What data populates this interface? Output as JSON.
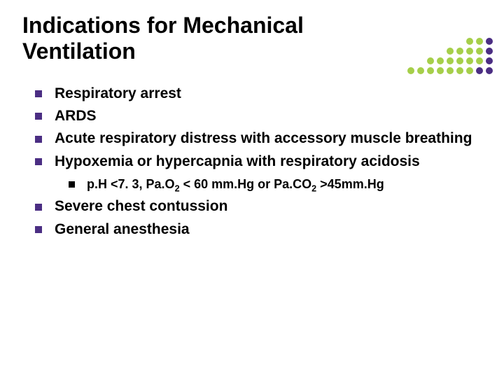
{
  "styling": {
    "bullet_color": "#4b2e83",
    "subbullet_color": "#000000",
    "title_fontsize": 32,
    "body_fontsize": 21,
    "sub_fontsize": 18,
    "title_color": "#000000",
    "body_color": "#000000",
    "background": "#ffffff"
  },
  "title": "Indications for Mechanical Ventilation",
  "bullets": [
    {
      "text": "Respiratory arrest"
    },
    {
      "text": "ARDS"
    },
    {
      "text": "Acute respiratory distress with accessory muscle breathing"
    },
    {
      "text": "Hypoxemia or hypercapnia with respiratory acidosis",
      "sub": [
        {
          "html": "p.H <7. 3, Pa.O<sub>2</sub> < 60 mm.Hg or Pa.CO<sub>2</sub> >45mm.Hg"
        }
      ]
    },
    {
      "text": "Severe chest contussion"
    },
    {
      "text": "General anesthesia"
    }
  ],
  "decoration": {
    "rows": [
      [
        "#a6cf4a",
        "#a6cf4a",
        "#4b2e83"
      ],
      [
        "#a6cf4a",
        "#a6cf4a",
        "#a6cf4a",
        "#a6cf4a",
        "#4b2e83"
      ],
      [
        "#a6cf4a",
        "#a6cf4a",
        "#a6cf4a",
        "#a6cf4a",
        "#a6cf4a",
        "#a6cf4a",
        "#4b2e83"
      ],
      [
        "#a6cf4a",
        "#a6cf4a",
        "#a6cf4a",
        "#a6cf4a",
        "#a6cf4a",
        "#a6cf4a",
        "#a6cf4a",
        "#4b2e83",
        "#4b2e83"
      ]
    ],
    "dot_size": 10,
    "dot_gap": 4
  }
}
